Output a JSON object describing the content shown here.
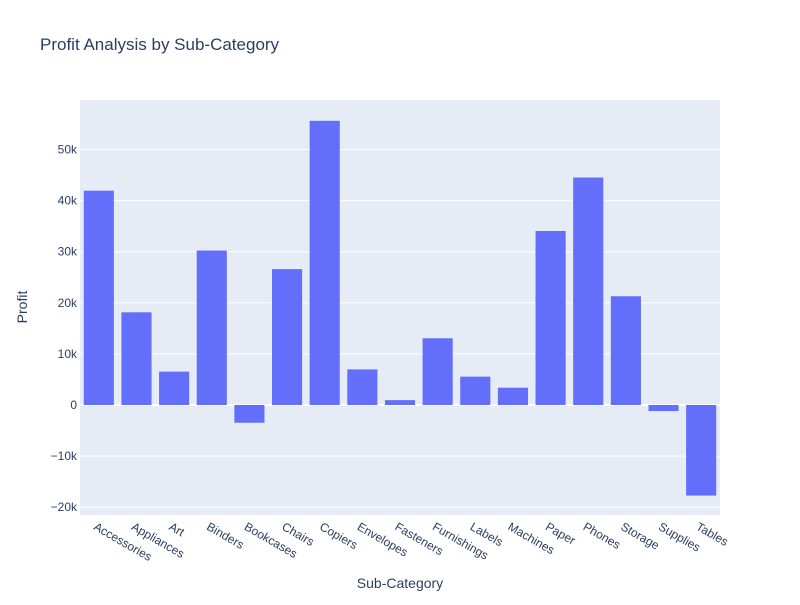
{
  "chart_data": {
    "type": "bar",
    "title": "Profit Analysis by Sub-Category",
    "xlabel": "Sub-Category",
    "ylabel": "Profit",
    "categories": [
      "Accessories",
      "Appliances",
      "Art",
      "Binders",
      "Bookcases",
      "Chairs",
      "Copiers",
      "Envelopes",
      "Fasteners",
      "Furnishings",
      "Labels",
      "Machines",
      "Paper",
      "Phones",
      "Storage",
      "Supplies",
      "Tables"
    ],
    "values": [
      41937,
      18138,
      6528,
      30222,
      -3473,
      26590,
      55618,
      6964,
      950,
      13059,
      5546,
      3385,
      34054,
      44516,
      21279,
      -1189,
      -17725
    ],
    "ylim": [
      -22000,
      60000
    ],
    "yticks": [
      -20000,
      -10000,
      0,
      10000,
      20000,
      30000,
      40000,
      50000
    ],
    "ytick_labels": [
      "−20k",
      "−10k",
      "0",
      "10k",
      "20k",
      "30k",
      "40k",
      "50k"
    ],
    "grid": true,
    "legend": false,
    "colors": {
      "bar": "#636efa",
      "plot_bg": "#e5ecf6",
      "grid": "#ffffff",
      "text": "#2a3f5f"
    }
  }
}
